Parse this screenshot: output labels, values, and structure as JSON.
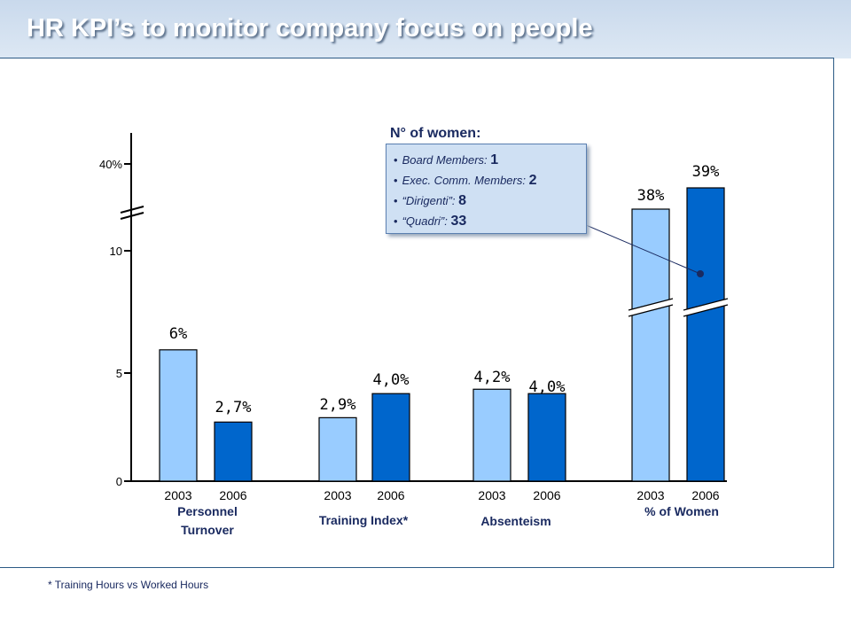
{
  "title": "HR KPI’s to monitor company focus on people",
  "footnote": "* Training Hours vs Worked Hours",
  "callout": {
    "title": "N° of women:",
    "items": [
      {
        "label": "Board Members:",
        "value": "1"
      },
      {
        "label": "Exec. Comm. Members:",
        "value": "2"
      },
      {
        "label": "“Dirigenti”:",
        "value": "8"
      },
      {
        "label": "“Quadri”:",
        "value": "33"
      }
    ]
  },
  "chart_data": {
    "type": "bar",
    "y_ticks": [
      "0",
      "5",
      "10",
      "40%"
    ],
    "y_axis_break": true,
    "groups": [
      {
        "label_lines": [
          "Personnel",
          "Turnover"
        ],
        "bars": [
          {
            "year": "2003",
            "value": 6,
            "label": "6%"
          },
          {
            "year": "2006",
            "value": 2.7,
            "label": "2,7%"
          }
        ]
      },
      {
        "label_lines": [
          "Training  Index*"
        ],
        "bars": [
          {
            "year": "2003",
            "value": 2.9,
            "label": "2,9%"
          },
          {
            "year": "2006",
            "value": 4.0,
            "label": "4,0%"
          }
        ]
      },
      {
        "label_lines": [
          "Absenteism"
        ],
        "bars": [
          {
            "year": "2003",
            "value": 4.2,
            "label": "4,2%"
          },
          {
            "year": "2006",
            "value": 4.0,
            "label": "4,0%"
          }
        ]
      },
      {
        "label_lines": [
          "% of Women"
        ],
        "bars": [
          {
            "year": "2003",
            "value": 38,
            "label": "38%"
          },
          {
            "year": "2006",
            "value": 39,
            "label": "39%"
          }
        ],
        "broken": true
      }
    ],
    "colors": {
      "2003": "#99ccff",
      "2006": "#0066cc"
    }
  }
}
